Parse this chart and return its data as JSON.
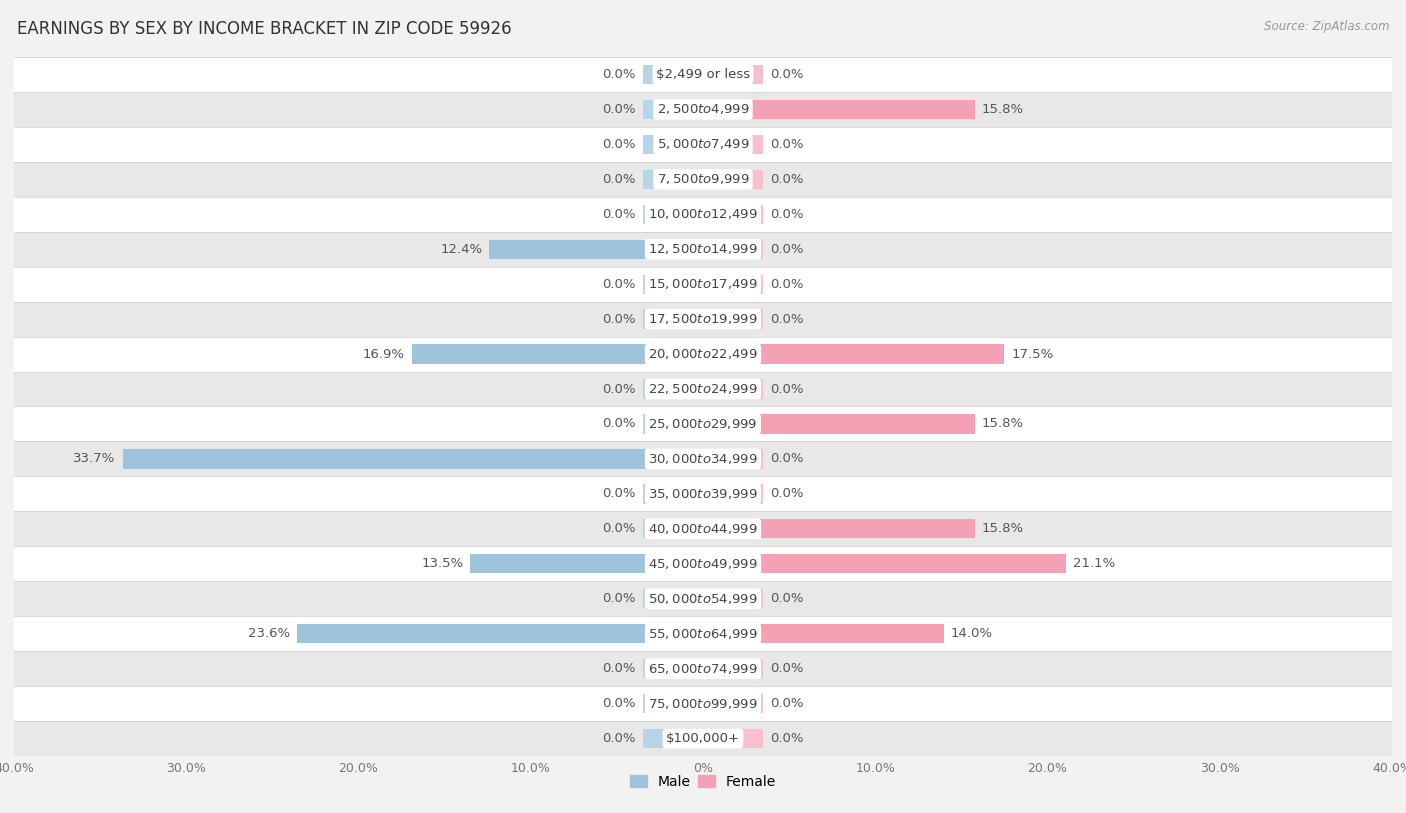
{
  "title": "EARNINGS BY SEX BY INCOME BRACKET IN ZIP CODE 59926",
  "source": "Source: ZipAtlas.com",
  "categories": [
    "$2,499 or less",
    "$2,500 to $4,999",
    "$5,000 to $7,499",
    "$7,500 to $9,999",
    "$10,000 to $12,499",
    "$12,500 to $14,999",
    "$15,000 to $17,499",
    "$17,500 to $19,999",
    "$20,000 to $22,499",
    "$22,500 to $24,999",
    "$25,000 to $29,999",
    "$30,000 to $34,999",
    "$35,000 to $39,999",
    "$40,000 to $44,999",
    "$45,000 to $49,999",
    "$50,000 to $54,999",
    "$55,000 to $64,999",
    "$65,000 to $74,999",
    "$75,000 to $99,999",
    "$100,000+"
  ],
  "male_values": [
    0.0,
    0.0,
    0.0,
    0.0,
    0.0,
    12.4,
    0.0,
    0.0,
    16.9,
    0.0,
    0.0,
    33.7,
    0.0,
    0.0,
    13.5,
    0.0,
    23.6,
    0.0,
    0.0,
    0.0
  ],
  "female_values": [
    0.0,
    15.8,
    0.0,
    0.0,
    0.0,
    0.0,
    0.0,
    0.0,
    17.5,
    0.0,
    15.8,
    0.0,
    0.0,
    15.8,
    21.1,
    0.0,
    14.0,
    0.0,
    0.0,
    0.0
  ],
  "male_color": "#9ec4dc",
  "female_color": "#f4a0b5",
  "male_color_zero": "#b8d5e8",
  "female_color_zero": "#f8c0cc",
  "male_label": "Male",
  "female_label": "Female",
  "xlim": 40.0,
  "bar_height": 0.55,
  "bg_color": "#f2f2f2",
  "row_color_even": "#ffffff",
  "row_color_odd": "#e8e8e8",
  "title_fontsize": 12,
  "label_fontsize": 9.5,
  "axis_fontsize": 9,
  "category_fontsize": 9.5,
  "stub_size": 3.5
}
